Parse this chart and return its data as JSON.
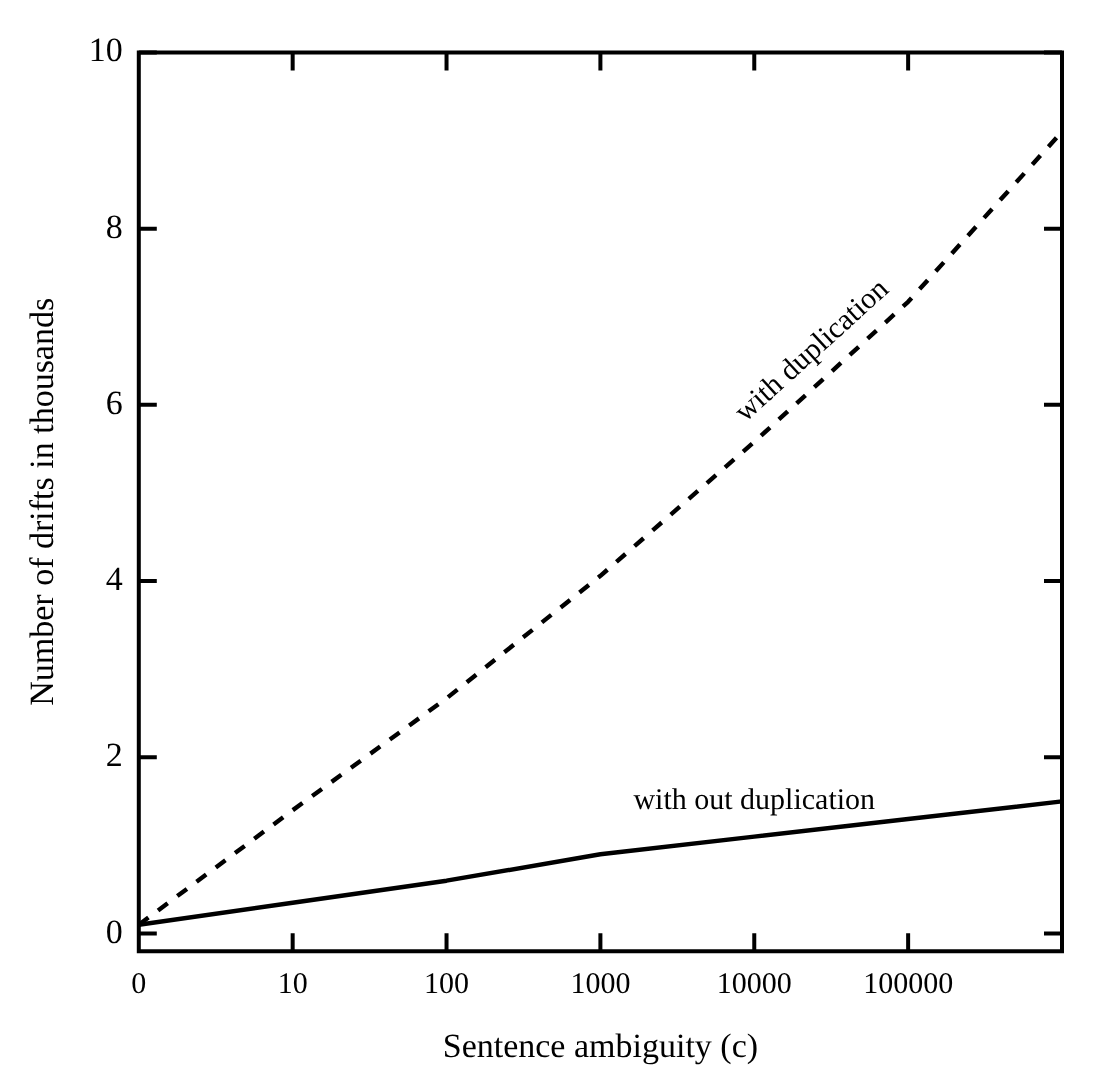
{
  "chart_data": {
    "type": "line",
    "xlabel": "Sentence ambiguity (c)",
    "ylabel": "Number of drifts in thousands",
    "categories": [
      "0",
      "10",
      "100",
      "1000",
      "10000",
      "100000",
      null
    ],
    "series": [
      {
        "name": "with duplication",
        "color": "#000000",
        "line_style": "dashed",
        "values": [
          0.1,
          1.4,
          2.67,
          4.06,
          5.58,
          7.17,
          9.1
        ]
      },
      {
        "name": "with out duplication",
        "color": "#000000",
        "line_style": "solid",
        "values": [
          0.1,
          0.35,
          0.6,
          0.9,
          1.1,
          1.3,
          1.5
        ]
      }
    ],
    "ylim": [
      -0.2,
      10
    ],
    "yticks": [
      0,
      2,
      4,
      6,
      8,
      10
    ],
    "grid": false,
    "legend": false,
    "marker": "none"
  }
}
